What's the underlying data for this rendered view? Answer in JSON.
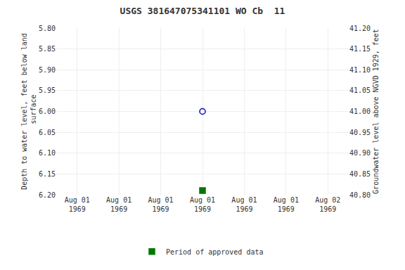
{
  "chart_data": {
    "type": "scatter",
    "title": "USGS 381647075341101 WO Cb  11",
    "categories": [
      "Aug 01\n1969",
      "Aug 01\n1969",
      "Aug 01\n1969",
      "Aug 01\n1969",
      "Aug 01\n1969",
      "Aug 01\n1969",
      "Aug 02\n1969"
    ],
    "series": [
      {
        "color": "#0000cc",
        "marker": "circle-open",
        "values": [
          null,
          null,
          null,
          6.0,
          null,
          null,
          null
        ]
      },
      {
        "name": "Period of approved data",
        "color": "#007700",
        "marker": "square",
        "values": [
          null,
          null,
          null,
          6.19,
          null,
          null,
          null
        ]
      }
    ],
    "ylabel": "Depth to water level, feet below land\n surface",
    "y2label": "Groundwater level above NGVD 1929, feet",
    "ylim": [
      6.2,
      5.8
    ],
    "yticks": [
      {
        "value": 5.8,
        "label": "5.80"
      },
      5.85,
      {
        "value": 5.9,
        "label": "5.90"
      },
      5.95,
      {
        "value": 6.0,
        "label": "6.00"
      },
      6.05,
      {
        "value": 6.1,
        "label": "6.10"
      },
      6.15,
      {
        "value": 6.2,
        "label": "6.20"
      }
    ],
    "y2lim": [
      40.8,
      41.2
    ],
    "y2ticks": [
      {
        "value": 41.2,
        "label": "41.20"
      },
      41.15,
      {
        "value": 41.1,
        "label": "41.10"
      },
      41.05,
      {
        "value": 41.0,
        "label": "41.00"
      },
      40.95,
      {
        "value": 40.9,
        "label": "40.90"
      },
      40.85,
      {
        "value": 40.8,
        "label": "40.80"
      }
    ],
    "grid": true,
    "legend": "bottom"
  }
}
